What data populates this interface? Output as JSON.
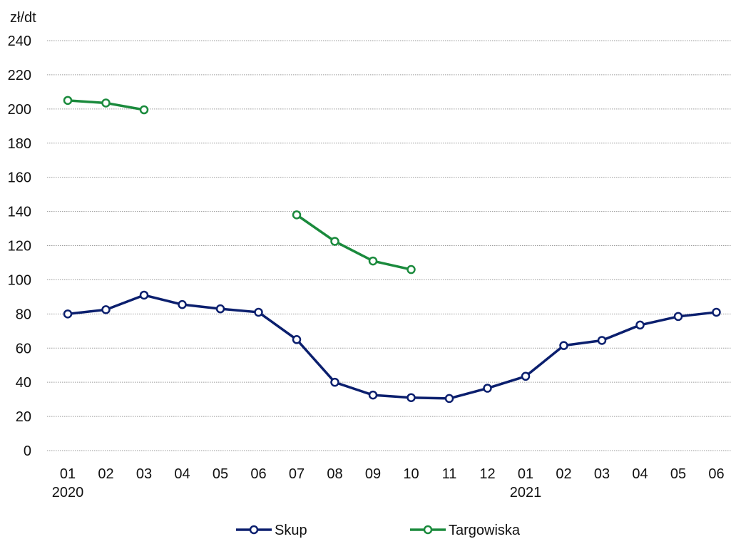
{
  "chart_data": {
    "type": "line",
    "unit_label": "zł/dt",
    "categories": [
      "01",
      "02",
      "03",
      "04",
      "05",
      "06",
      "07",
      "08",
      "09",
      "10",
      "11",
      "12",
      "01",
      "02",
      "03",
      "04",
      "05",
      "06"
    ],
    "year_labels": [
      {
        "index": 0,
        "label": "2020"
      },
      {
        "index": 12,
        "label": "2021"
      }
    ],
    "ylim": [
      0,
      240
    ],
    "yticks": [
      0,
      20,
      40,
      60,
      80,
      100,
      120,
      140,
      160,
      180,
      200,
      220,
      240
    ],
    "grid": true,
    "legend_position": "bottom",
    "series": [
      {
        "name": "Skup",
        "color": "#0b1f6e",
        "values": [
          80,
          82.5,
          91,
          85.5,
          83,
          81,
          65,
          40,
          32.5,
          31,
          30.5,
          36.5,
          43.5,
          61.5,
          64.5,
          73.5,
          78.5,
          81
        ]
      },
      {
        "name": "Targowiska",
        "color": "#1a8a3c",
        "values": [
          205,
          203.5,
          199.5,
          null,
          null,
          null,
          138,
          122.5,
          111,
          106,
          null,
          null,
          null,
          null,
          null,
          null,
          null,
          null
        ]
      }
    ]
  }
}
